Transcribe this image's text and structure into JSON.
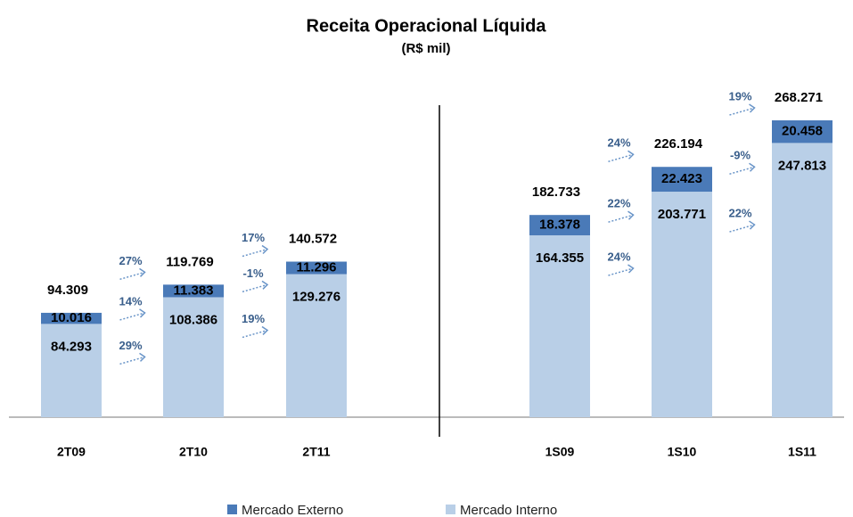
{
  "chart_data": {
    "type": "stacked_bar",
    "title": "Receita Operacional Líquida",
    "subtitle": "(R$ mil)",
    "categories": [
      "2T09",
      "2T10",
      "2T11",
      "1S09",
      "1S10",
      "1S11"
    ],
    "series": [
      {
        "name": "Mercado Interno",
        "color": "#b9cfe7",
        "values": [
          84293,
          108386,
          129276,
          164355,
          203771,
          247813
        ],
        "value_labels": [
          "84.293",
          "108.386",
          "129.276",
          "164.355",
          "203.771",
          "247.813"
        ]
      },
      {
        "name": "Mercado Externo",
        "color": "#4a7ab8",
        "values": [
          10016,
          11383,
          11296,
          18378,
          22423,
          20458
        ],
        "value_labels": [
          "10.016",
          "11.383",
          "11.296",
          "18.378",
          "22.423",
          "20.458"
        ]
      }
    ],
    "totals": {
      "values": [
        94309,
        119769,
        140572,
        182733,
        226194,
        268271
      ],
      "value_labels": [
        "94.309",
        "119.769",
        "140.572",
        "182.733",
        "226.194",
        "268.271"
      ]
    },
    "growth": {
      "total": [
        "27%",
        "17%",
        null,
        "24%",
        "19%"
      ],
      "externo": [
        "14%",
        "-1%",
        null,
        "22%",
        "-9%"
      ],
      "interno": [
        "29%",
        "19%",
        null,
        "24%",
        "22%"
      ]
    }
  }
}
